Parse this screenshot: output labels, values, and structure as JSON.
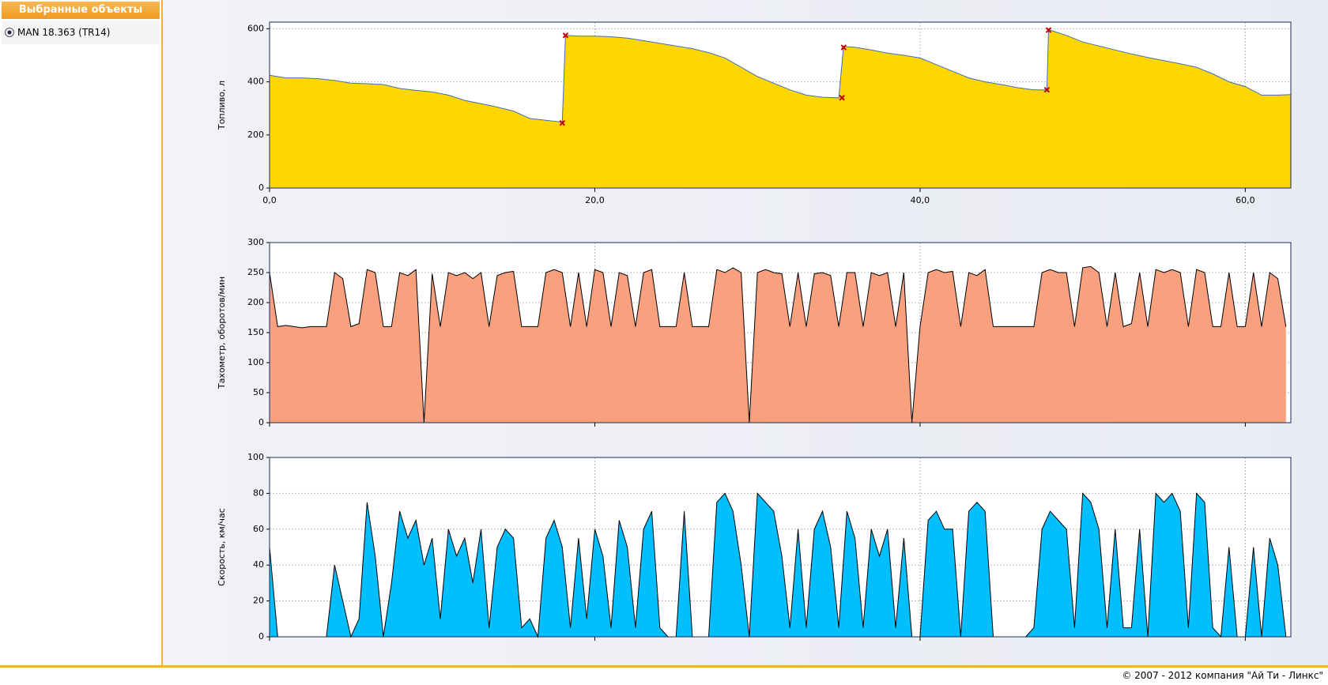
{
  "sidebar": {
    "title": "Выбранные объекты",
    "items": [
      "MAN 18.363 (TR14)"
    ]
  },
  "footer": "© 2007 - 2012 компания \"Ай Ти - Линкс\"",
  "chart_data": [
    {
      "type": "area",
      "y_label": "Топливо, л",
      "color": "#ffd700",
      "line_color": "#3f6fb0",
      "x": [
        0,
        1,
        2,
        3,
        4,
        5,
        6,
        7,
        8,
        9,
        10,
        11,
        12,
        13,
        14,
        15,
        16,
        17,
        18,
        18.2,
        19,
        20,
        21,
        22,
        23,
        24,
        25,
        26,
        27,
        28,
        29,
        30,
        31,
        32,
        33,
        34,
        35,
        35.3,
        36,
        37,
        38,
        39,
        40,
        41,
        42,
        43,
        44,
        45,
        46,
        47,
        47.8,
        47.9,
        48,
        49,
        50,
        51,
        52,
        53,
        54,
        55,
        56,
        57,
        58,
        59,
        60,
        61,
        62,
        62.8
      ],
      "values": [
        425,
        415,
        415,
        412,
        405,
        395,
        393,
        390,
        375,
        368,
        362,
        350,
        330,
        318,
        305,
        290,
        262,
        255,
        248,
        575,
        572,
        572,
        570,
        565,
        555,
        545,
        535,
        525,
        510,
        490,
        455,
        420,
        395,
        370,
        350,
        342,
        340,
        533,
        530,
        520,
        508,
        500,
        490,
        465,
        440,
        415,
        400,
        390,
        378,
        370,
        370,
        597,
        595,
        575,
        550,
        535,
        520,
        505,
        492,
        480,
        468,
        455,
        430,
        400,
        382,
        350,
        350,
        352
      ],
      "markers": {
        "color": "#c00000",
        "x": [
          18.0,
          18.2,
          35.2,
          35.3,
          47.8,
          47.9
        ],
        "y": [
          245,
          575,
          340,
          530,
          370,
          595
        ]
      },
      "xlim": [
        0,
        62.8
      ],
      "ylim": [
        0,
        625
      ],
      "xticks": [
        {
          "value": 0,
          "label": "0,0"
        },
        {
          "value": 20,
          "label": "20,0"
        },
        {
          "value": 40,
          "label": "40,0"
        },
        {
          "value": 60,
          "label": "60,0"
        }
      ],
      "yticks": [
        0,
        200,
        400,
        600
      ],
      "grid": true,
      "show_x_tick_labels": true
    },
    {
      "type": "area",
      "y_label": "Тахометр, оборотов/мин",
      "color": "#f9a07e",
      "line_color": "#000000",
      "x": [
        0,
        0.5,
        1,
        1.5,
        2,
        2.5,
        3,
        3.5,
        4,
        4.5,
        5,
        5.5,
        6,
        6.5,
        7,
        7.5,
        8,
        8.5,
        9,
        9.5,
        10,
        10.5,
        11,
        11.5,
        12,
        12.5,
        13,
        13.5,
        14,
        14.5,
        15,
        15.5,
        16,
        16.5,
        17,
        17.5,
        18,
        18.5,
        19,
        19.5,
        20,
        20.5,
        21,
        21.5,
        22,
        22.5,
        23,
        23.5,
        24,
        24.5,
        25,
        25.5,
        26,
        26.5,
        27,
        27.5,
        28,
        28.5,
        29,
        29.5,
        30,
        30.5,
        31,
        31.5,
        32,
        32.5,
        33,
        33.5,
        34,
        34.5,
        35,
        35.5,
        36,
        36.5,
        37,
        37.5,
        38,
        38.5,
        39,
        39.5,
        40,
        40.5,
        41,
        41.5,
        42,
        42.5,
        43,
        43.5,
        44,
        44.5,
        45,
        45.5,
        46,
        46.5,
        47,
        47.5,
        48,
        48.5,
        49,
        49.5,
        50,
        50.5,
        51,
        51.5,
        52,
        52.5,
        53,
        53.5,
        54,
        54.5,
        55,
        55.5,
        56,
        56.5,
        57,
        57.5,
        58,
        58.5,
        59,
        59.5,
        60,
        60.5,
        61,
        61.5,
        62,
        62.5
      ],
      "values": [
        250,
        160,
        162,
        160,
        158,
        160,
        160,
        160,
        250,
        240,
        160,
        165,
        255,
        250,
        160,
        160,
        250,
        245,
        255,
        0,
        248,
        160,
        250,
        245,
        250,
        240,
        250,
        160,
        245,
        250,
        252,
        160,
        160,
        160,
        250,
        255,
        250,
        160,
        250,
        160,
        255,
        250,
        160,
        250,
        245,
        160,
        250,
        255,
        160,
        160,
        160,
        250,
        160,
        160,
        160,
        255,
        250,
        258,
        250,
        0,
        250,
        255,
        250,
        248,
        160,
        250,
        160,
        248,
        250,
        245,
        160,
        250,
        250,
        160,
        250,
        245,
        250,
        160,
        250,
        0,
        160,
        250,
        255,
        250,
        252,
        160,
        250,
        245,
        255,
        160,
        160,
        160,
        160,
        160,
        160,
        250,
        255,
        250,
        250,
        160,
        258,
        260,
        250,
        160,
        250,
        160,
        165,
        250,
        160,
        255,
        250,
        255,
        250,
        160,
        255,
        250,
        160,
        160,
        250,
        160,
        160,
        250,
        160,
        250,
        240,
        160
      ],
      "xlim": [
        0,
        62.8
      ],
      "ylim": [
        0,
        300
      ],
      "xticks": [
        0,
        20,
        40,
        60
      ],
      "yticks": [
        0,
        50,
        100,
        150,
        200,
        250,
        300
      ],
      "grid": true,
      "show_x_tick_labels": false
    },
    {
      "type": "area",
      "y_label": "Скорость, км/час",
      "color": "#00bfff",
      "line_color": "#000000",
      "x": [
        0,
        0.5,
        1,
        1.5,
        2,
        2.5,
        3,
        3.5,
        4,
        4.5,
        5,
        5.5,
        6,
        6.5,
        7,
        7.5,
        8,
        8.5,
        9,
        9.5,
        10,
        10.5,
        11,
        11.5,
        12,
        12.5,
        13,
        13.5,
        14,
        14.5,
        15,
        15.5,
        16,
        16.5,
        17,
        17.5,
        18,
        18.5,
        19,
        19.5,
        20,
        20.5,
        21,
        21.5,
        22,
        22.5,
        23,
        23.5,
        24,
        24.5,
        25,
        25.5,
        26,
        26.5,
        27,
        27.5,
        28,
        28.5,
        29,
        29.5,
        30,
        30.5,
        31,
        31.5,
        32,
        32.5,
        33,
        33.5,
        34,
        34.5,
        35,
        35.5,
        36,
        36.5,
        37,
        37.5,
        38,
        38.5,
        39,
        39.5,
        40,
        40.5,
        41,
        41.5,
        42,
        42.5,
        43,
        43.5,
        44,
        44.5,
        45,
        45.5,
        46,
        46.5,
        47,
        47.5,
        48,
        48.5,
        49,
        49.5,
        50,
        50.5,
        51,
        51.5,
        52,
        52.5,
        53,
        53.5,
        54,
        54.5,
        55,
        55.5,
        56,
        56.5,
        57,
        57.5,
        58,
        58.5,
        59,
        59.5,
        60,
        60.5,
        61,
        61.5,
        62,
        62.5
      ],
      "values": [
        50,
        0,
        0,
        0,
        0,
        0,
        0,
        0,
        40,
        20,
        0,
        10,
        75,
        45,
        0,
        30,
        70,
        55,
        65,
        40,
        55,
        10,
        60,
        45,
        55,
        30,
        60,
        5,
        50,
        60,
        55,
        5,
        10,
        0,
        55,
        65,
        50,
        5,
        55,
        10,
        60,
        45,
        5,
        65,
        50,
        5,
        60,
        70,
        5,
        0,
        0,
        70,
        0,
        0,
        0,
        75,
        80,
        70,
        40,
        0,
        80,
        75,
        70,
        45,
        5,
        60,
        5,
        60,
        70,
        50,
        5,
        70,
        55,
        5,
        60,
        45,
        60,
        5,
        55,
        0,
        0,
        65,
        70,
        60,
        60,
        0,
        70,
        75,
        70,
        0,
        0,
        0,
        0,
        0,
        5,
        60,
        70,
        65,
        60,
        5,
        80,
        75,
        60,
        5,
        60,
        5,
        5,
        60,
        0,
        80,
        75,
        80,
        70,
        5,
        80,
        75,
        5,
        0,
        50,
        0,
        0,
        50,
        0,
        55,
        40,
        0
      ],
      "xlim": [
        0,
        62.8
      ],
      "ylim": [
        0,
        100
      ],
      "xticks": [
        0,
        20,
        40,
        60
      ],
      "yticks": [
        0,
        20,
        40,
        60,
        80,
        100
      ],
      "grid": true,
      "show_x_tick_labels": false
    }
  ]
}
